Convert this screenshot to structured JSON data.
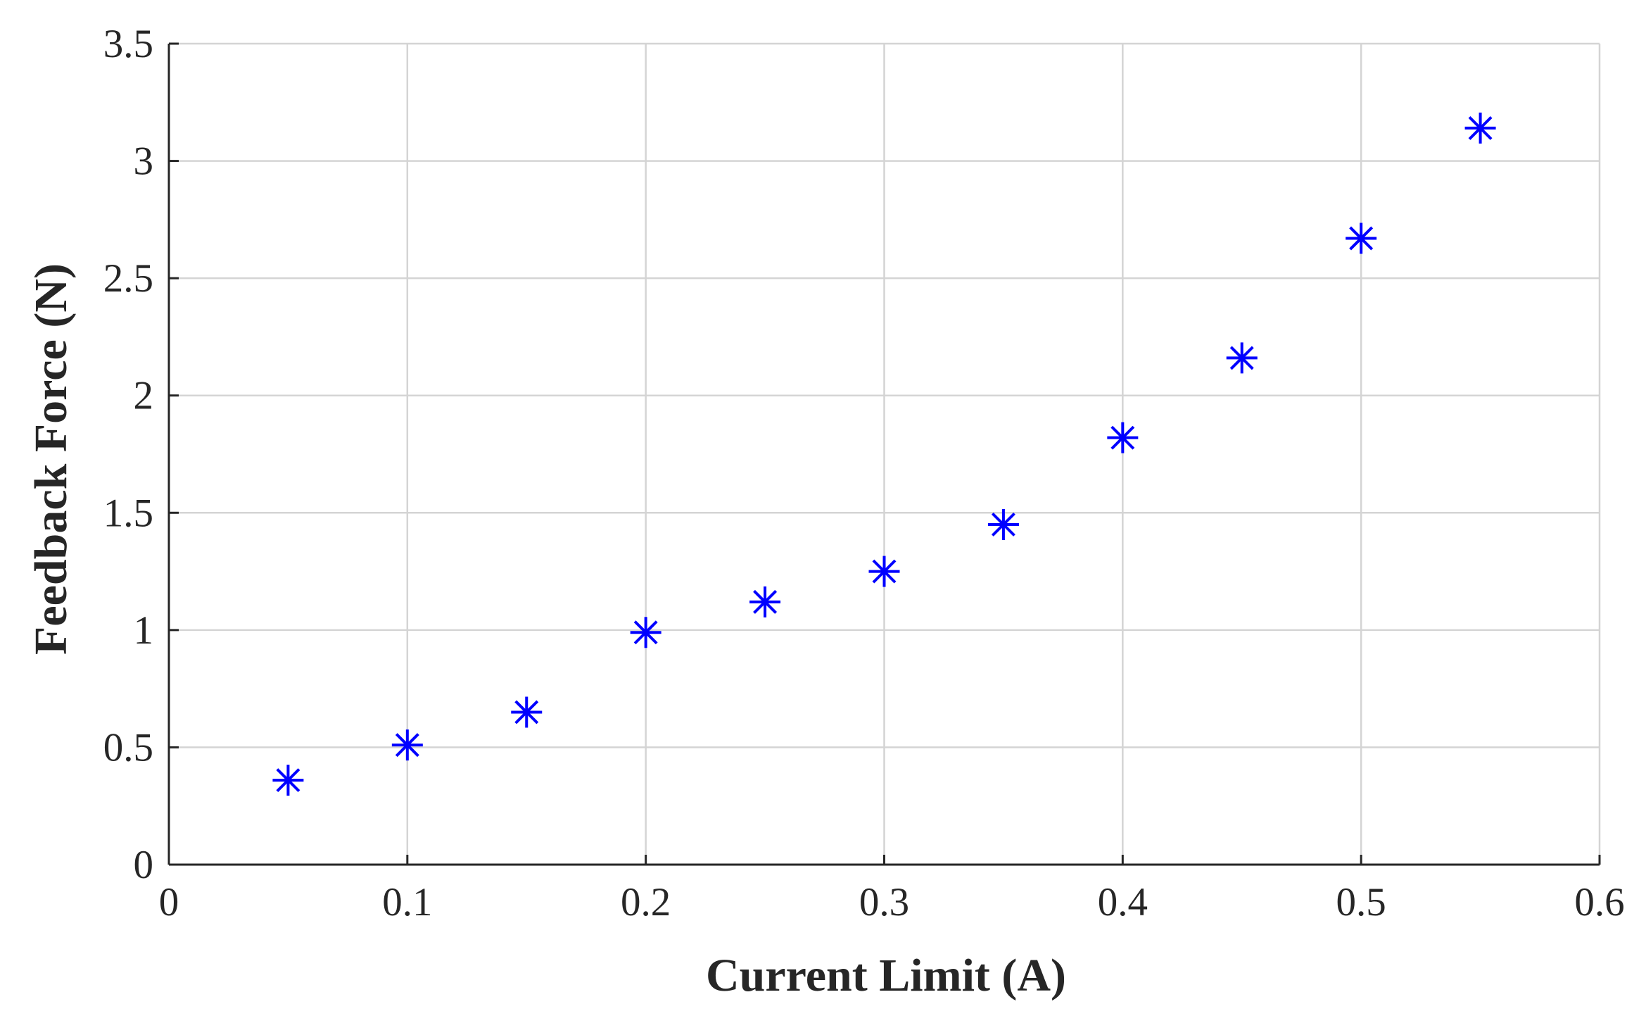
{
  "chart_data": {
    "type": "scatter",
    "title": "",
    "xlabel": "Current Limit (A)",
    "ylabel": "Feedback Force (N)",
    "xlim": [
      0,
      0.6
    ],
    "ylim": [
      0,
      3.5
    ],
    "x_ticks": [
      0,
      0.1,
      0.2,
      0.3,
      0.4,
      0.5,
      0.6
    ],
    "x_tick_labels": [
      "0",
      "0.1",
      "0.2",
      "0.3",
      "0.4",
      "0.5",
      "0.6"
    ],
    "y_ticks": [
      0,
      0.5,
      1,
      1.5,
      2,
      2.5,
      3,
      3.5
    ],
    "y_tick_labels": [
      "0",
      "0.5",
      "1",
      "1.5",
      "2",
      "2.5",
      "3",
      "3.5"
    ],
    "grid": true,
    "legend": "none",
    "marker": "asterisk",
    "colors": {
      "marker": "#0000ff",
      "grid": "#d4d4d4",
      "axis": "#262626"
    },
    "series": [
      {
        "x": [
          0.05,
          0.1,
          0.15,
          0.2,
          0.25,
          0.3,
          0.35,
          0.4,
          0.45,
          0.5,
          0.55
        ],
        "y": [
          0.36,
          0.51,
          0.65,
          0.99,
          1.12,
          1.25,
          1.45,
          1.82,
          2.16,
          2.67,
          3.14
        ]
      }
    ]
  }
}
